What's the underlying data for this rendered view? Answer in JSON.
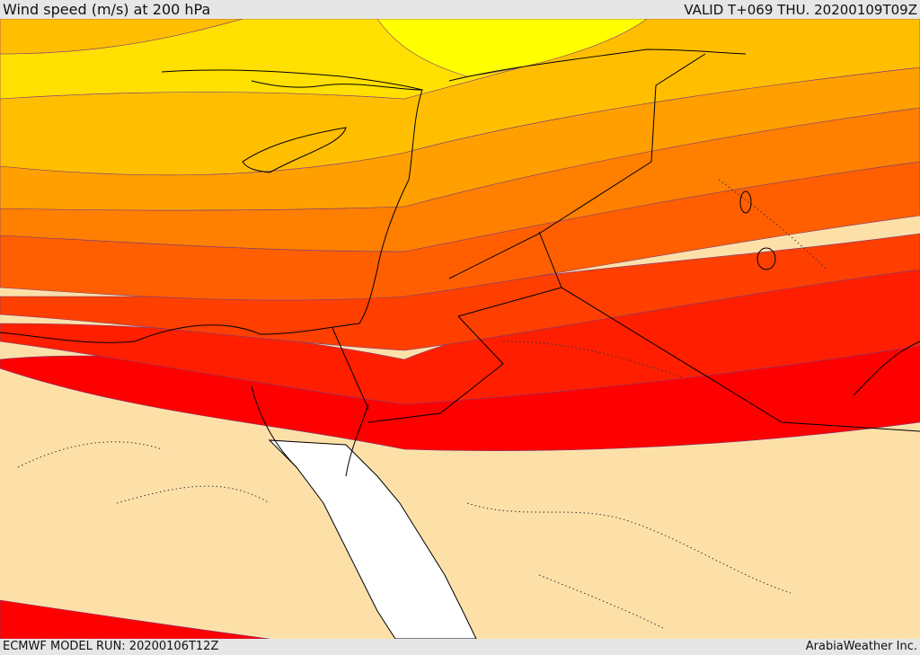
{
  "header": {
    "title": "Wind speed (m/s) at 200 hPa",
    "valid": "VALID T+069 THU. 20200109T09Z"
  },
  "footer": {
    "model_run": "ECMWF MODEL RUN: 20200106T12Z",
    "credit": "ArabiaWeather Inc."
  },
  "colors": {
    "land_below_threshold": "#fde0a8",
    "sea": "#ffffff",
    "band_1": "#ffff00",
    "band_2": "#ffe000",
    "band_3": "#ffbf00",
    "band_4": "#ff9f00",
    "band_5": "#ff7f00",
    "band_6": "#ff5f00",
    "band_7": "#ff3f00",
    "band_8": "#ff1f00",
    "band_9": "#ff0000",
    "coastline": "#000000",
    "border": "#000000"
  }
}
